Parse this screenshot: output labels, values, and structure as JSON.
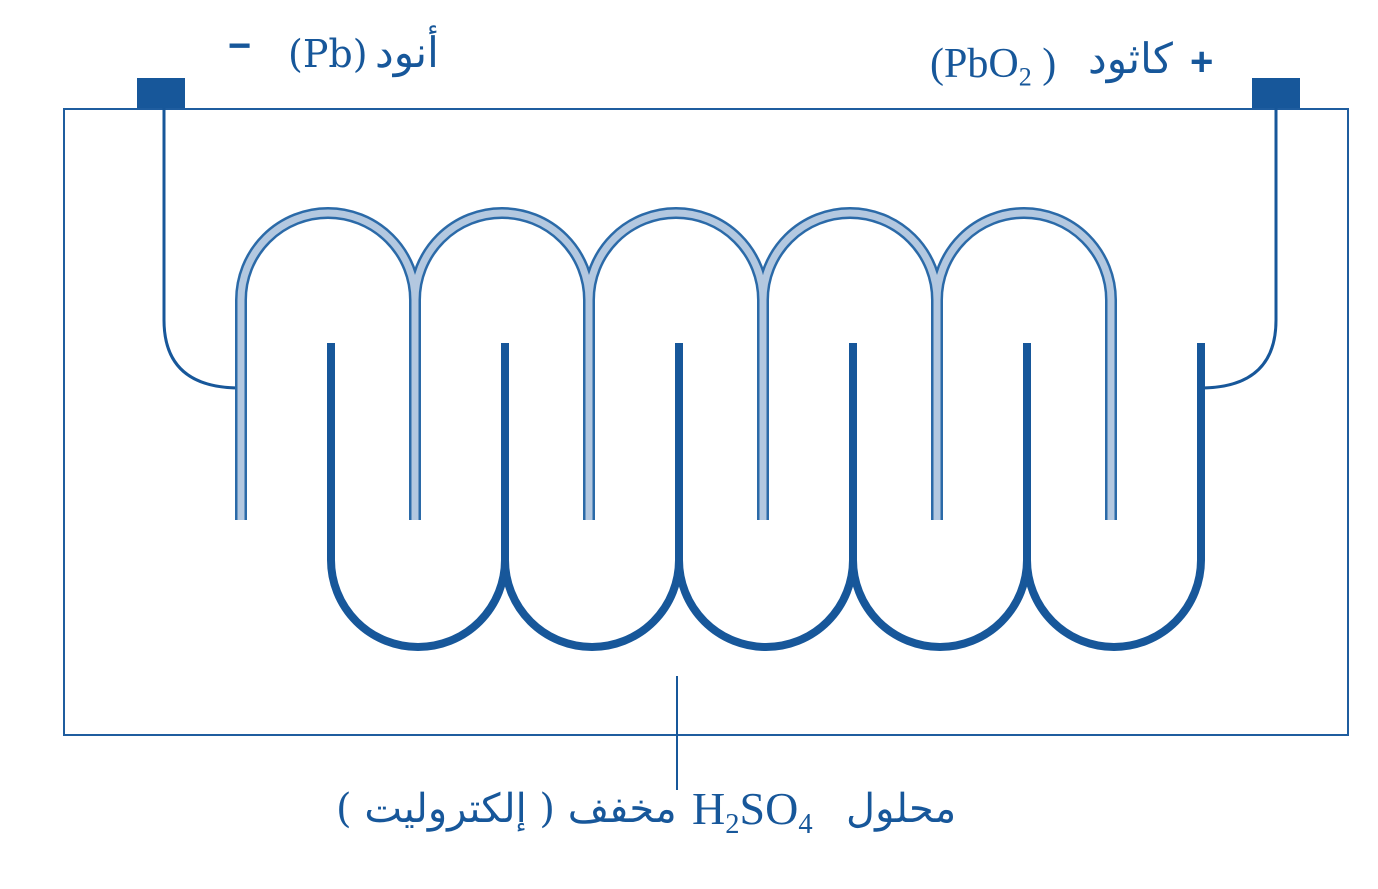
{
  "anode": {
    "sign": "−",
    "label_ar": "أنود",
    "formula": "(Pb)"
  },
  "cathode": {
    "sign": "+",
    "label_ar": "كاثود",
    "formula_open": "(",
    "formula_main": "PbO",
    "formula_sub": "2",
    "formula_close": ")"
  },
  "electrolyte": {
    "prefix_ar": "محلول",
    "formula_main": "H",
    "formula_sub1": "2",
    "formula_mid": "SO",
    "formula_sub2": "4",
    "suffix_ar": "مخفف ( إلكتروليت )"
  },
  "colors": {
    "dark_blue": "#17579a",
    "light_blue": "#9db8d6",
    "outline": "#1f5d9f"
  }
}
